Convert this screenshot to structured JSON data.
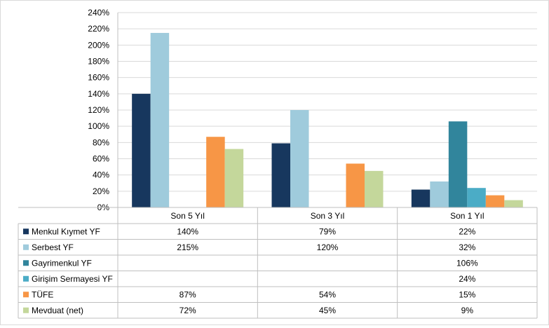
{
  "chart_data": {
    "type": "bar",
    "categories": [
      "Son 5 Yıl",
      "Son 3 Yıl",
      "Son 1 Yıl"
    ],
    "y_ticks": [
      "0%",
      "20%",
      "40%",
      "60%",
      "80%",
      "100%",
      "120%",
      "140%",
      "160%",
      "180%",
      "200%",
      "220%",
      "240%"
    ],
    "ylim": [
      0,
      240
    ],
    "grid": true,
    "legend": "data-table-left",
    "series": [
      {
        "name": "Menkul Kıymet YF",
        "color": "#17375e",
        "values": [
          140,
          79,
          22
        ],
        "labels": [
          "140%",
          "79%",
          "22%"
        ]
      },
      {
        "name": "Serbest YF",
        "color": "#9fcbdc",
        "values": [
          215,
          120,
          32
        ],
        "labels": [
          "215%",
          "120%",
          "32%"
        ]
      },
      {
        "name": "Gayrimenkul YF",
        "color": "#31859c",
        "values": [
          null,
          null,
          106
        ],
        "labels": [
          "",
          "",
          "106%"
        ]
      },
      {
        "name": "Girişim Sermayesi YF",
        "color": "#4bacc6",
        "values": [
          null,
          null,
          24
        ],
        "labels": [
          "",
          "",
          "24%"
        ]
      },
      {
        "name": "TÜFE",
        "color": "#f79646",
        "values": [
          87,
          54,
          15
        ],
        "labels": [
          "87%",
          "54%",
          "15%"
        ]
      },
      {
        "name": "Mevduat (net)",
        "color": "#c4d79b",
        "values": [
          72,
          45,
          9
        ],
        "labels": [
          "72%",
          "45%",
          "9%"
        ]
      }
    ]
  }
}
